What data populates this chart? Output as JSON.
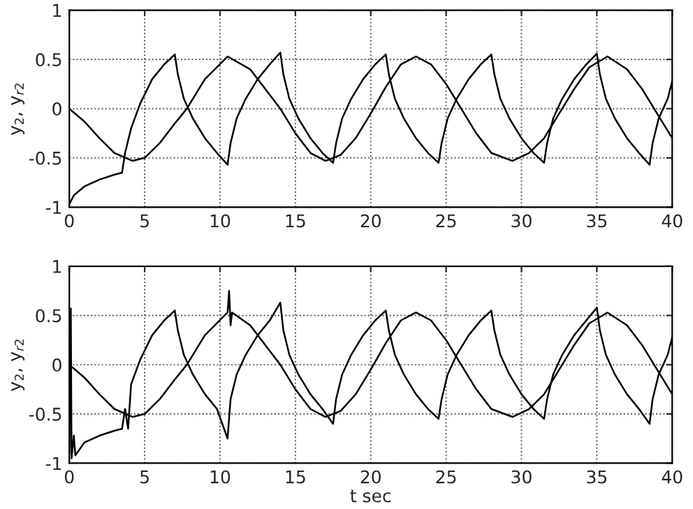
{
  "chart_data": [
    {
      "type": "line",
      "ylabel": "y$_{2}$, y$_{r2}$",
      "xlim": [
        0,
        40
      ],
      "ylim": [
        -1,
        1
      ],
      "xticks": [
        0,
        5,
        10,
        15,
        20,
        25,
        30,
        35,
        40
      ],
      "yticks": [
        -1,
        {
          "value": -0.5,
          "label": "-0.5"
        },
        0,
        0.5,
        1
      ],
      "grid": true,
      "line_style": "solid",
      "series": [
        {
          "color": "#000000",
          "x": [
            0,
            1,
            2,
            3,
            4.2,
            5,
            6,
            7,
            7.8,
            9,
            10.5,
            12,
            13,
            14,
            15,
            16,
            17,
            18,
            19,
            20,
            21,
            22,
            23,
            24,
            25,
            26,
            27,
            28,
            29.4,
            30.5,
            31.5,
            32.5,
            33.5,
            34.5,
            35.7,
            37,
            38,
            39,
            40
          ],
          "values": [
            0,
            -0.13,
            -0.3,
            -0.45,
            -0.53,
            -0.5,
            -0.35,
            -0.15,
            0,
            0.3,
            0.53,
            0.4,
            0.2,
            0,
            -0.25,
            -0.45,
            -0.53,
            -0.47,
            -0.3,
            -0.05,
            0.22,
            0.45,
            0.53,
            0.45,
            0.25,
            0,
            -0.25,
            -0.45,
            -0.53,
            -0.45,
            -0.3,
            -0.05,
            0.2,
            0.42,
            0.53,
            0.4,
            0.2,
            -0.05,
            -0.3
          ]
        },
        {
          "color": "#000000",
          "x": [
            0,
            0.3,
            1,
            2,
            3,
            3.5,
            3.7,
            4.1,
            4.7,
            5.5,
            6.3,
            7,
            7.2,
            7.6,
            8.2,
            9,
            9.8,
            10.5,
            10.7,
            11.1,
            11.7,
            12.5,
            13.3,
            14,
            14.2,
            14.6,
            15.2,
            16,
            16.8,
            17.5,
            17.7,
            18.1,
            18.7,
            19.5,
            20.3,
            21,
            21.2,
            21.6,
            22.2,
            23,
            23.8,
            24.5,
            24.7,
            25.1,
            25.7,
            26.5,
            27.3,
            28,
            28.2,
            28.6,
            29.2,
            30,
            30.8,
            31.5,
            31.7,
            32.1,
            32.7,
            33.5,
            34.3,
            35,
            35.2,
            35.6,
            36.2,
            37,
            37.8,
            38.5,
            38.7,
            39.1,
            39.7,
            40
          ],
          "values": [
            -0.97,
            -0.88,
            -0.79,
            -0.72,
            -0.67,
            -0.65,
            -0.45,
            -0.2,
            0.05,
            0.3,
            0.45,
            0.55,
            0.35,
            0.1,
            -0.1,
            -0.3,
            -0.45,
            -0.57,
            -0.35,
            -0.1,
            0.1,
            0.3,
            0.45,
            0.57,
            0.35,
            0.1,
            -0.1,
            -0.3,
            -0.45,
            -0.55,
            -0.35,
            -0.1,
            0.1,
            0.3,
            0.45,
            0.55,
            0.35,
            0.1,
            -0.1,
            -0.3,
            -0.45,
            -0.55,
            -0.35,
            -0.1,
            0.1,
            0.3,
            0.45,
            0.55,
            0.35,
            0.1,
            -0.1,
            -0.3,
            -0.45,
            -0.55,
            -0.35,
            -0.1,
            0.1,
            0.3,
            0.45,
            0.56,
            0.35,
            0.1,
            -0.1,
            -0.3,
            -0.45,
            -0.57,
            -0.35,
            -0.1,
            0.1,
            0.28
          ]
        }
      ],
      "tick_labels": "xy"
    },
    {
      "type": "line",
      "xlabel": "t sec",
      "ylabel": "y$_{2}$, y$_{r2}$",
      "xlim": [
        0,
        40
      ],
      "ylim": [
        -1,
        1
      ],
      "xticks": [
        0,
        5,
        10,
        15,
        20,
        25,
        30,
        35,
        40
      ],
      "yticks": [
        -1,
        {
          "value": -0.5,
          "label": "-0.5"
        },
        0,
        0.5,
        1
      ],
      "grid": true,
      "line_style": "solid",
      "series": [
        {
          "color": "#000000",
          "x": [
            0,
            1,
            2,
            3,
            4.2,
            5,
            6,
            7,
            7.8,
            9,
            10.5,
            10.6,
            10.7,
            10.8,
            12,
            13,
            14,
            15,
            16,
            17,
            18,
            19,
            20,
            21,
            22,
            23,
            24,
            25,
            26,
            27,
            28,
            29.4,
            30.5,
            31.5,
            32.5,
            33.5,
            34.5,
            35.7,
            37,
            38,
            39,
            40
          ],
          "values": [
            0,
            -0.13,
            -0.3,
            -0.45,
            -0.53,
            -0.5,
            -0.35,
            -0.15,
            0,
            0.3,
            0.53,
            0.75,
            0.4,
            0.53,
            0.4,
            0.2,
            0,
            -0.25,
            -0.45,
            -0.53,
            -0.47,
            -0.3,
            -0.05,
            0.22,
            0.45,
            0.53,
            0.45,
            0.25,
            0,
            -0.25,
            -0.45,
            -0.53,
            -0.45,
            -0.3,
            -0.05,
            0.2,
            0.42,
            0.53,
            0.4,
            0.2,
            -0.05,
            -0.3
          ]
        },
        {
          "color": "#000000",
          "x": [
            0,
            0.1,
            0.15,
            0.3,
            0.4,
            1,
            2,
            3,
            3.5,
            3.7,
            3.9,
            4.1,
            4.7,
            5.5,
            6.3,
            7,
            7.2,
            7.6,
            8.2,
            9,
            9.8,
            10.5,
            10.7,
            11.1,
            11.7,
            12.5,
            13.3,
            14,
            14.2,
            14.6,
            15.2,
            16,
            16.8,
            17.5,
            17.7,
            18.1,
            18.7,
            19.5,
            20.3,
            21,
            21.2,
            21.6,
            22.2,
            23,
            23.8,
            24.5,
            24.7,
            25.1,
            25.7,
            26.5,
            27.3,
            28,
            28.2,
            28.6,
            29.2,
            30,
            30.8,
            31.5,
            31.7,
            32.1,
            32.7,
            33.5,
            34.3,
            35,
            35.2,
            35.6,
            36.2,
            37,
            37.8,
            38.5,
            38.7,
            39.1,
            39.7,
            40
          ],
          "values": [
            -0.9,
            0.57,
            -0.95,
            -0.72,
            -0.92,
            -0.79,
            -0.72,
            -0.67,
            -0.65,
            -0.45,
            -0.65,
            -0.2,
            0.05,
            0.3,
            0.45,
            0.55,
            0.35,
            0.1,
            -0.1,
            -0.3,
            -0.45,
            -0.75,
            -0.35,
            -0.1,
            0.1,
            0.3,
            0.45,
            0.63,
            0.35,
            0.1,
            -0.1,
            -0.3,
            -0.45,
            -0.6,
            -0.35,
            -0.1,
            0.1,
            0.3,
            0.45,
            0.55,
            0.35,
            0.1,
            -0.1,
            -0.3,
            -0.45,
            -0.55,
            -0.35,
            -0.1,
            0.1,
            0.3,
            0.45,
            0.55,
            0.35,
            0.1,
            -0.1,
            -0.3,
            -0.45,
            -0.55,
            -0.35,
            -0.1,
            0.1,
            0.3,
            0.45,
            0.58,
            0.35,
            0.1,
            -0.1,
            -0.3,
            -0.45,
            -0.6,
            -0.35,
            -0.1,
            0.1,
            0.28
          ]
        }
      ],
      "tick_labels": "xy"
    }
  ]
}
